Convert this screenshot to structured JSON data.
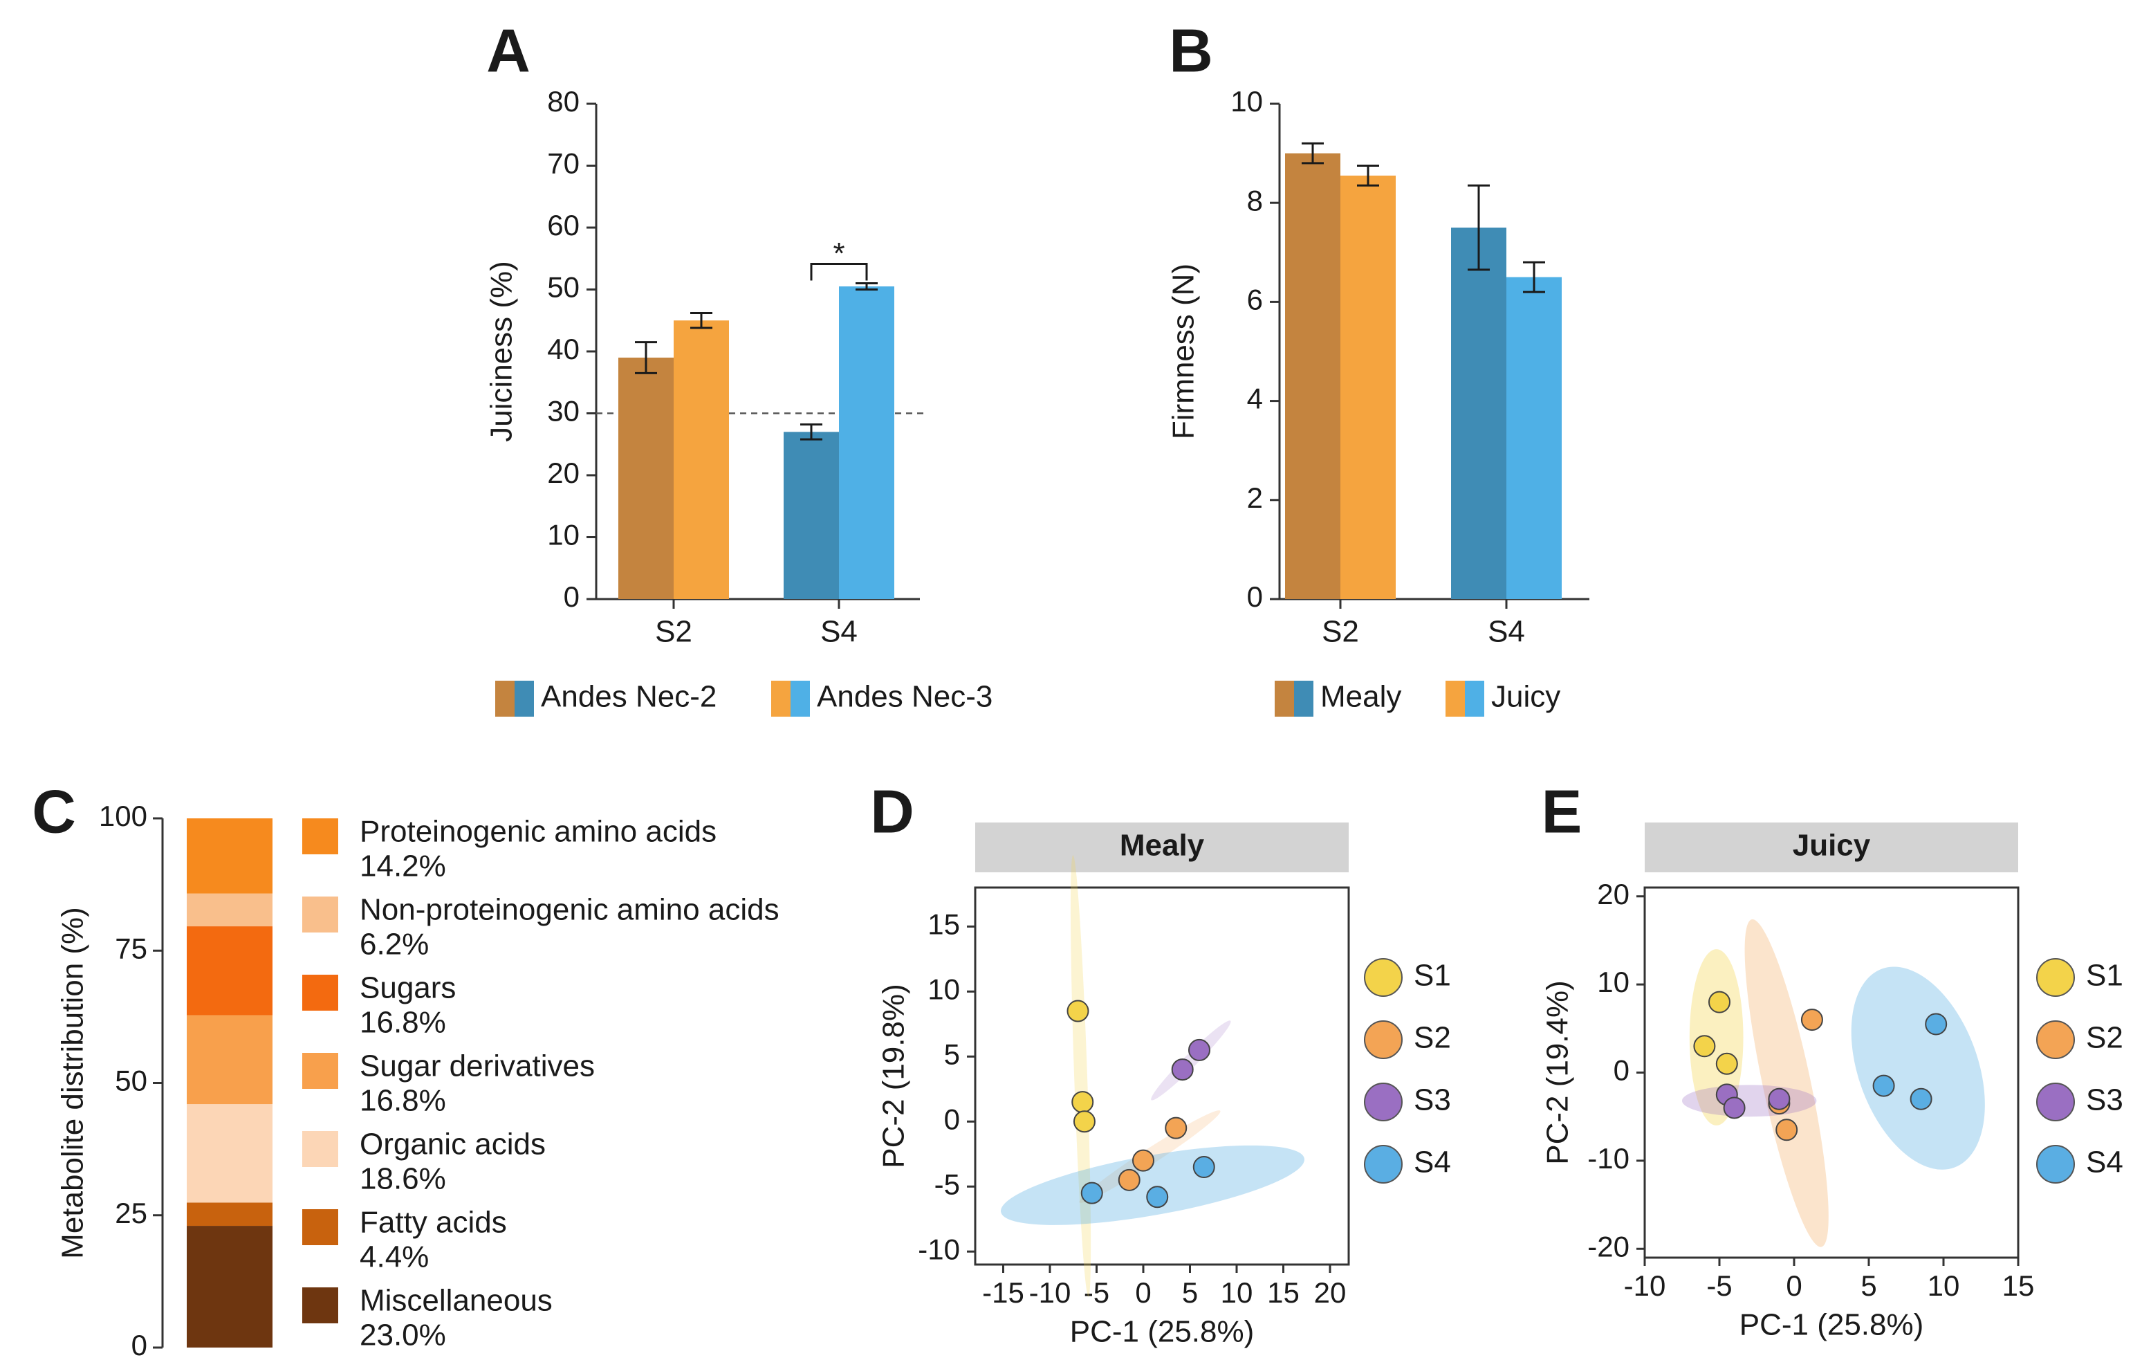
{
  "chart_data": [
    {
      "panel": "A",
      "type": "bar",
      "categories": [
        "S2",
        "S4"
      ],
      "ylabel": "Juiciness (%)",
      "ylim": [
        0,
        80
      ],
      "yticks": [
        0,
        10,
        20,
        30,
        40,
        50,
        60,
        70,
        80
      ],
      "reference_line": 30,
      "annotation": "*",
      "series": [
        {
          "name": "Andes Nec-2",
          "values": [
            39,
            27
          ],
          "errors": [
            2.5,
            1.2
          ],
          "colors": [
            "#c4843f",
            "#3f8cb5"
          ]
        },
        {
          "name": "Andes Nec-3",
          "values": [
            45,
            50.5
          ],
          "errors": [
            1.2,
            0.5
          ],
          "colors": [
            "#f5a43f",
            "#4fb0e6"
          ]
        }
      ]
    },
    {
      "panel": "B",
      "type": "bar",
      "categories": [
        "S2",
        "S4"
      ],
      "ylabel": "Firmness (N)",
      "ylim": [
        0,
        10
      ],
      "yticks": [
        0,
        2,
        4,
        6,
        8,
        10
      ],
      "series": [
        {
          "name": "Mealy",
          "values": [
            9.0,
            7.5
          ],
          "errors": [
            0.2,
            0.85
          ],
          "colors": [
            "#c4843f",
            "#3f8cb5"
          ]
        },
        {
          "name": "Juicy",
          "values": [
            8.55,
            6.5
          ],
          "errors": [
            0.2,
            0.3
          ],
          "colors": [
            "#f5a43f",
            "#4fb0e6"
          ]
        }
      ]
    },
    {
      "panel": "C",
      "type": "bar",
      "ylabel": "Metabolite distribution (%)",
      "ylim": [
        0,
        100
      ],
      "yticks": [
        0,
        25,
        50,
        75,
        100
      ],
      "series": [
        {
          "name": "Proteinogenic amino acids",
          "value_label": "14.2%",
          "value": 14.2,
          "color": "#f68a1e"
        },
        {
          "name": "Non-proteinogenic amino acids",
          "value_label": "6.2%",
          "value": 6.2,
          "color": "#f9bf8c"
        },
        {
          "name": "Sugars",
          "value_label": "16.8%",
          "value": 16.8,
          "color": "#f36a10"
        },
        {
          "name": "Sugar derivatives",
          "value_label": "16.8%",
          "value": 16.8,
          "color": "#f8a04c"
        },
        {
          "name": "Organic acids",
          "value_label": "18.6%",
          "value": 18.6,
          "color": "#fcd6b6"
        },
        {
          "name": "Fatty acids",
          "value_label": "4.4%",
          "value": 4.4,
          "color": "#c8620e"
        },
        {
          "name": "Miscellaneous",
          "value_label": "23.0%",
          "value": 23.0,
          "color": "#6e3610"
        }
      ]
    },
    {
      "panel": "D",
      "type": "scatter",
      "title": "Mealy",
      "xlabel": "PC-1 (25.8%)",
      "ylabel": "PC-2 (19.8%)",
      "xlim": [
        -18,
        22
      ],
      "ylim": [
        -11,
        18
      ],
      "xticks": [
        -15,
        -10,
        -5,
        0,
        5,
        10,
        15,
        20
      ],
      "yticks": [
        -10,
        -5,
        0,
        5,
        10,
        15
      ],
      "series": [
        {
          "name": "S1",
          "color": "#f3d34a",
          "points": [
            [
              -7,
              8.5
            ],
            [
              -6.5,
              1.5
            ],
            [
              -6.3,
              0
            ]
          ],
          "ellipse": {
            "cx": -6.7,
            "cy": 3.5,
            "rx": 0.7,
            "ry": 17,
            "angle": 2,
            "opacity": 0.25
          }
        },
        {
          "name": "S2",
          "color": "#f3a455",
          "points": [
            [
              -1.5,
              -4.5
            ],
            [
              0,
              -3
            ],
            [
              3.5,
              -0.5
            ]
          ],
          "ellipse": {
            "cx": 0.7,
            "cy": -2.7,
            "rx": 9,
            "ry": 0.6,
            "angle": 33,
            "opacity": 0.2
          }
        },
        {
          "name": "S3",
          "color": "#9a6fc2",
          "points": [
            [
              4.2,
              4
            ],
            [
              6,
              5.5
            ]
          ],
          "ellipse": {
            "cx": 5.1,
            "cy": 4.7,
            "rx": 6,
            "ry": 0.5,
            "angle": 45,
            "opacity": 0.2
          }
        },
        {
          "name": "S4",
          "color": "#5aaee3",
          "points": [
            [
              -5.5,
              -5.5
            ],
            [
              1.5,
              -5.8
            ],
            [
              6.5,
              -3.5
            ]
          ],
          "ellipse": {
            "cx": 1,
            "cy": -4.9,
            "rx": 16.5,
            "ry": 2.3,
            "angle": 10,
            "opacity": 0.35
          }
        }
      ]
    },
    {
      "panel": "E",
      "type": "scatter",
      "title": "Juicy",
      "xlabel": "PC-1 (25.8%)",
      "ylabel": "PC-2 (19.4%)",
      "xlim": [
        -10,
        15
      ],
      "ylim": [
        -21,
        21
      ],
      "xticks": [
        -10,
        -5,
        0,
        5,
        10,
        15
      ],
      "yticks": [
        -20,
        -10,
        0,
        10,
        20
      ],
      "series": [
        {
          "name": "S1",
          "color": "#f3d34a",
          "points": [
            [
              -6,
              3
            ],
            [
              -5,
              8
            ],
            [
              -4.5,
              1
            ]
          ],
          "ellipse": {
            "cx": -5.2,
            "cy": 4,
            "rx": 1.8,
            "ry": 10,
            "angle": 0,
            "opacity": 0.35
          }
        },
        {
          "name": "S2",
          "color": "#f3a455",
          "points": [
            [
              1.2,
              6
            ],
            [
              -1,
              -3.5
            ],
            [
              -0.5,
              -6.5
            ]
          ],
          "ellipse": {
            "cx": -0.5,
            "cy": -1.2,
            "rx": 1.6,
            "ry": 19,
            "angle": 12,
            "opacity": 0.3
          }
        },
        {
          "name": "S3",
          "color": "#9a6fc2",
          "points": [
            [
              -4.5,
              -2.5
            ],
            [
              -4,
              -4
            ],
            [
              -1,
              -3
            ]
          ],
          "ellipse": {
            "cx": -3,
            "cy": -3.2,
            "rx": 4.5,
            "ry": 1.8,
            "angle": 0,
            "opacity": 0.3
          }
        },
        {
          "name": "S4",
          "color": "#5aaee3",
          "points": [
            [
              6,
              -1.5
            ],
            [
              8.5,
              -3
            ],
            [
              9.5,
              5.5
            ]
          ],
          "ellipse": {
            "cx": 8.3,
            "cy": 0.5,
            "rx": 4,
            "ry": 12,
            "angle": 20,
            "opacity": 0.35
          }
        }
      ]
    }
  ]
}
